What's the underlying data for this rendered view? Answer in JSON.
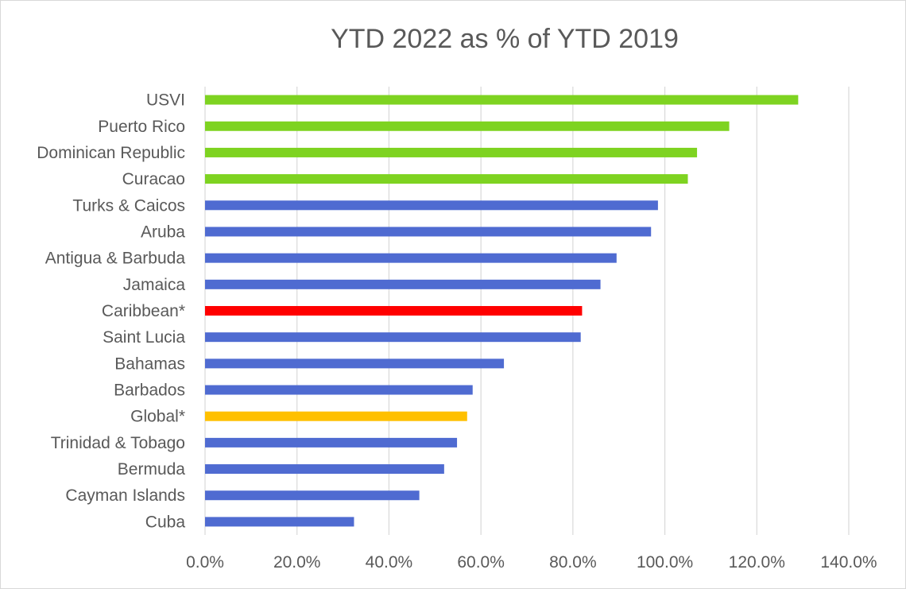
{
  "chart_data": {
    "type": "bar",
    "orientation": "horizontal",
    "title": "YTD 2022 as % of YTD 2019",
    "xlabel": "",
    "ylabel": "",
    "xlim": [
      0,
      140
    ],
    "x_tick_values": [
      0,
      20,
      40,
      60,
      80,
      100,
      120,
      140
    ],
    "x_tick_labels": [
      "0.0%",
      "20.0%",
      "40.0%",
      "60.0%",
      "80.0%",
      "100.0%",
      "120.0%",
      "140.0%"
    ],
    "grid": "vertical gridlines",
    "legend": "none",
    "categories": [
      "USVI",
      "Puerto Rico",
      "Dominican Republic",
      "Curacao",
      "Turks & Caicos",
      "Aruba",
      "Antigua & Barbuda",
      "Jamaica",
      "Caribbean*",
      "Saint Lucia",
      "Bahamas",
      "Barbados",
      "Global*",
      "Trinidad & Tobago",
      "Bermuda",
      "Cayman Islands",
      "Cuba"
    ],
    "values": [
      129.0,
      114.0,
      107.0,
      105.0,
      98.5,
      97.0,
      89.5,
      86.0,
      82.0,
      81.7,
      65.0,
      58.2,
      57.0,
      54.8,
      52.0,
      46.6,
      32.4
    ],
    "colors": [
      "#7ed321",
      "#7ed321",
      "#7ed321",
      "#7ed321",
      "#4f6bd1",
      "#4f6bd1",
      "#4f6bd1",
      "#4f6bd1",
      "#ff0000",
      "#4f6bd1",
      "#4f6bd1",
      "#4f6bd1",
      "#ffc000",
      "#4f6bd1",
      "#4f6bd1",
      "#4f6bd1",
      "#4f6bd1"
    ]
  }
}
